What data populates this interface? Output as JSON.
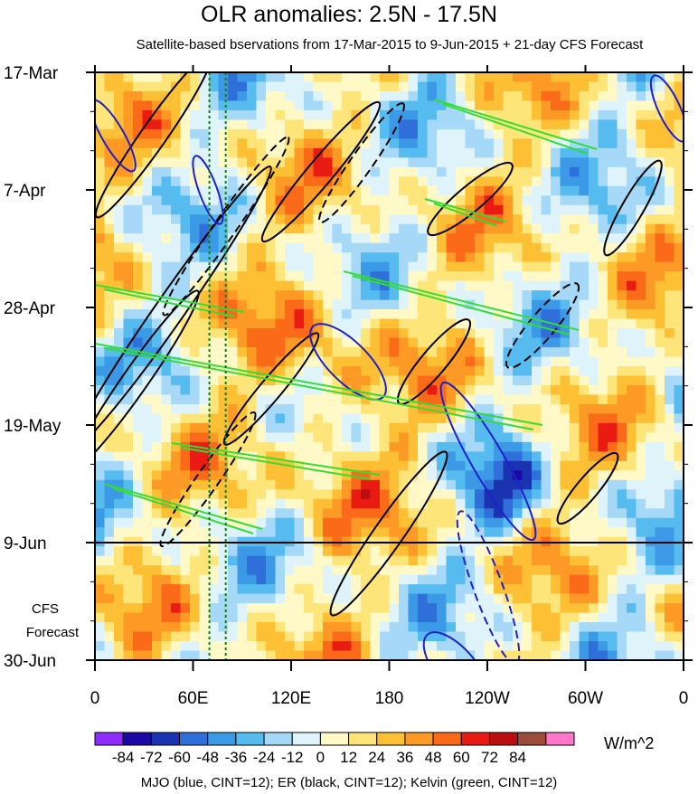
{
  "chart_data": {
    "type": "heatmap",
    "title": "OLR anomalies: 2.5N - 17.5N",
    "subtitle": "Satellite-based bservations from 17-Mar-2015 to 9-Jun-2015 + 21-day CFS Forecast",
    "x_ticks": [
      "0",
      "60E",
      "120E",
      "180",
      "120W",
      "60W",
      "0"
    ],
    "x_range": [
      0,
      360
    ],
    "y_ticks": [
      "17-Mar",
      "7-Apr",
      "28-Apr",
      "19-May",
      "9-Jun",
      "30-Jun"
    ],
    "y_range": [
      "17-Mar-2015",
      "30-Jun-2015"
    ],
    "observation_end": "9-Jun-2015",
    "forecast_label": [
      "CFS",
      "Forecast"
    ],
    "colorbar": {
      "tick_labels": [
        "-84",
        "-72",
        "-60",
        "-48",
        "-36",
        "-24",
        "-12",
        "0",
        "12",
        "24",
        "36",
        "48",
        "60",
        "72",
        "84"
      ],
      "colors": [
        "#8f2cff",
        "#1b0aa6",
        "#1a33b0",
        "#2f6fd9",
        "#3c99e6",
        "#56bcf0",
        "#a6d8f7",
        "#dff3fa",
        "#fff9c8",
        "#fee57a",
        "#fdc035",
        "#fd9a25",
        "#fa6a18",
        "#ea1b13",
        "#ba0f0e",
        "#9b4d3a",
        "#ff77c8"
      ],
      "units": "W/m^2"
    },
    "overlays": [
      {
        "name": "MJO",
        "color": "#1f1fcc"
      },
      {
        "name": "ER",
        "color": "#000000"
      },
      {
        "name": "Kelvin",
        "color": "#33dd33"
      }
    ],
    "reference_lines": [
      {
        "x": 70,
        "style": "dotted",
        "color": "#1a7a1a"
      },
      {
        "x": 80,
        "style": "dotted",
        "color": "#1a7a1a"
      }
    ]
  },
  "footnote": "MJO (blue, CINT=12); ER (black, CINT=12); Kelvin (green, CINT=12)"
}
